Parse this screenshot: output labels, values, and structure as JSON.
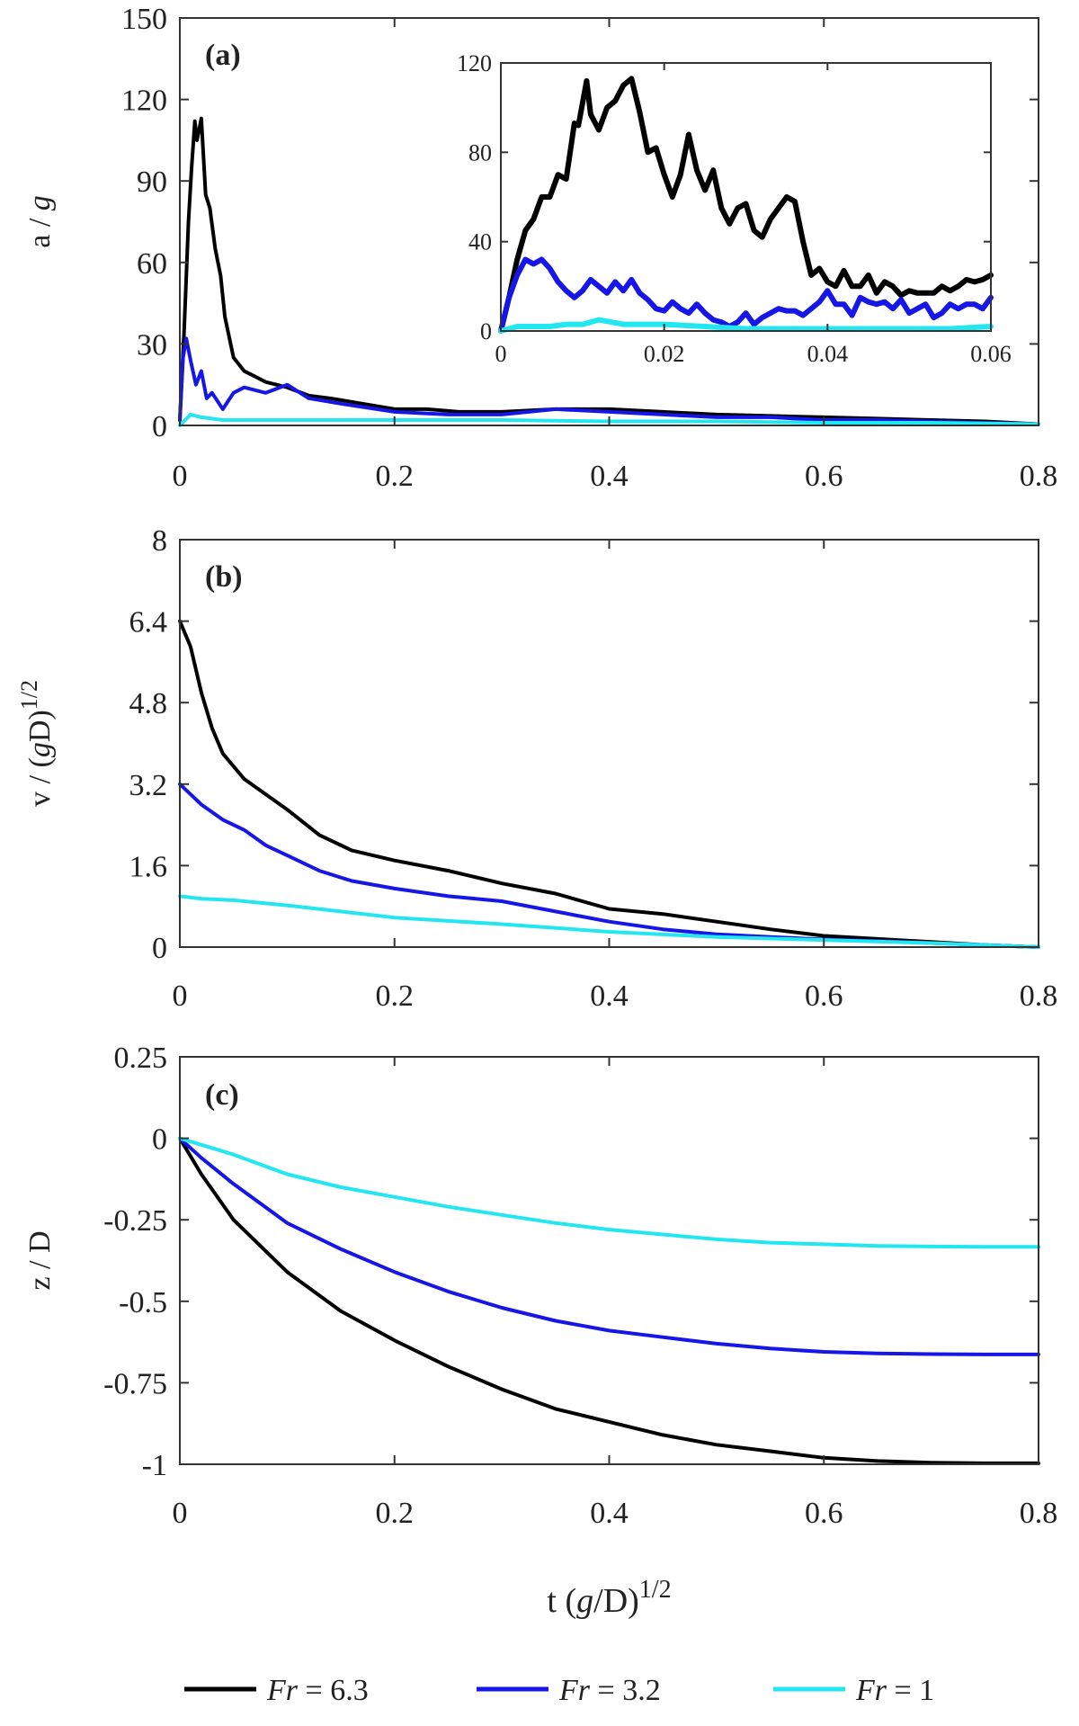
{
  "legend": {
    "items": [
      {
        "name": "Fr",
        "value": "6.3",
        "color": "#000000"
      },
      {
        "name": "Fr",
        "value": "3.2",
        "color": "#1616e6"
      },
      {
        "name": "Fr",
        "value": "1",
        "color": "#22e6f0"
      }
    ],
    "equals": "="
  },
  "chart_data": [
    {
      "type": "line",
      "panel": "(a)",
      "xlabel": "",
      "ylabel": "a / g",
      "xlim": [
        0,
        0.8
      ],
      "ylim": [
        0,
        150
      ],
      "xticks": [
        "0",
        "0.2",
        "0.4",
        "0.6",
        "0.8"
      ],
      "yticks": [
        "0",
        "30",
        "60",
        "90",
        "120",
        "150"
      ],
      "series": [
        {
          "name": "Fr = 6.3",
          "color": "#000000",
          "x": [
            0,
            0.004,
            0.008,
            0.011,
            0.014,
            0.016,
            0.02,
            0.024,
            0.028,
            0.033,
            0.038,
            0.042,
            0.05,
            0.06,
            0.07,
            0.08,
            0.1,
            0.12,
            0.14,
            0.17,
            0.2,
            0.23,
            0.26,
            0.3,
            0.35,
            0.4,
            0.45,
            0.5,
            0.55,
            0.6,
            0.65,
            0.7,
            0.75,
            0.8
          ],
          "y": [
            2,
            35,
            75,
            95,
            112,
            105,
            113,
            85,
            80,
            65,
            55,
            40,
            25,
            20,
            18,
            16,
            14,
            11,
            10,
            8,
            6,
            6,
            5,
            5,
            6,
            6,
            5,
            4,
            3.5,
            3,
            2.5,
            2,
            1.5,
            0.5
          ]
        },
        {
          "name": "Fr = 3.2",
          "color": "#1616e6",
          "x": [
            0,
            0.003,
            0.006,
            0.01,
            0.015,
            0.02,
            0.025,
            0.03,
            0.04,
            0.05,
            0.06,
            0.08,
            0.1,
            0.12,
            0.15,
            0.2,
            0.25,
            0.3,
            0.35,
            0.4,
            0.45,
            0.5,
            0.55,
            0.6,
            0.65,
            0.7,
            0.75,
            0.8
          ],
          "y": [
            2,
            25,
            32,
            24,
            15,
            20,
            10,
            12,
            6,
            12,
            14,
            12,
            15,
            10,
            8,
            5,
            4,
            4,
            6,
            5,
            4,
            3,
            3,
            2,
            2,
            1.5,
            1,
            0.5
          ]
        },
        {
          "name": "Fr = 1",
          "color": "#22e6f0",
          "x": [
            0,
            0.01,
            0.02,
            0.04,
            0.06,
            0.1,
            0.15,
            0.2,
            0.3,
            0.4,
            0.5,
            0.6,
            0.7,
            0.8
          ],
          "y": [
            0,
            4,
            3,
            2,
            2,
            2,
            2,
            2,
            2,
            1.5,
            1.5,
            1,
            1,
            0.5
          ]
        }
      ]
    },
    {
      "type": "line",
      "panel": "inset of (a)",
      "xlim": [
        0,
        0.06
      ],
      "ylim": [
        0,
        120
      ],
      "xticks": [
        "0",
        "0.02",
        "0.04",
        "0.06"
      ],
      "yticks": [
        "0",
        "40",
        "80",
        "120"
      ],
      "series": [
        {
          "name": "Fr = 6.3",
          "color": "#000000",
          "x": [
            0,
            0.001,
            0.002,
            0.003,
            0.004,
            0.005,
            0.006,
            0.007,
            0.008,
            0.009,
            0.0095,
            0.0105,
            0.011,
            0.012,
            0.013,
            0.014,
            0.015,
            0.016,
            0.017,
            0.018,
            0.019,
            0.02,
            0.021,
            0.022,
            0.023,
            0.024,
            0.025,
            0.026,
            0.027,
            0.028,
            0.029,
            0.03,
            0.031,
            0.032,
            0.033,
            0.034,
            0.035,
            0.036,
            0.037,
            0.038,
            0.039,
            0.04,
            0.041,
            0.042,
            0.043,
            0.044,
            0.045,
            0.046,
            0.047,
            0.048,
            0.049,
            0.05,
            0.051,
            0.052,
            0.053,
            0.054,
            0.055,
            0.056,
            0.057,
            0.058,
            0.059,
            0.06
          ],
          "y": [
            0,
            15,
            32,
            45,
            50,
            60,
            60,
            70,
            68,
            93,
            92,
            112,
            97,
            90,
            100,
            103,
            110,
            113,
            98,
            80,
            82,
            70,
            60,
            70,
            88,
            72,
            63,
            72,
            55,
            48,
            55,
            57,
            45,
            42,
            50,
            55,
            60,
            58,
            40,
            25,
            28,
            22,
            20,
            27,
            20,
            20,
            25,
            17,
            22,
            20,
            16,
            18,
            17,
            17,
            17,
            20,
            18,
            20,
            23,
            22,
            23,
            25
          ]
        },
        {
          "name": "Fr = 3.2",
          "color": "#1616e6",
          "x": [
            0,
            0.001,
            0.002,
            0.003,
            0.004,
            0.005,
            0.006,
            0.007,
            0.008,
            0.009,
            0.01,
            0.011,
            0.012,
            0.013,
            0.014,
            0.015,
            0.016,
            0.017,
            0.018,
            0.019,
            0.02,
            0.021,
            0.022,
            0.023,
            0.024,
            0.025,
            0.026,
            0.027,
            0.028,
            0.029,
            0.03,
            0.031,
            0.032,
            0.033,
            0.034,
            0.035,
            0.036,
            0.037,
            0.038,
            0.039,
            0.04,
            0.041,
            0.042,
            0.043,
            0.044,
            0.045,
            0.046,
            0.047,
            0.048,
            0.049,
            0.05,
            0.051,
            0.052,
            0.053,
            0.054,
            0.055,
            0.056,
            0.057,
            0.058,
            0.059,
            0.06
          ],
          "y": [
            0,
            15,
            25,
            32,
            30,
            32,
            28,
            22,
            18,
            15,
            18,
            23,
            20,
            17,
            22,
            18,
            23,
            17,
            14,
            10,
            9,
            13,
            10,
            8,
            12,
            8,
            5,
            4,
            2,
            4,
            8,
            3,
            6,
            8,
            10,
            9,
            9,
            7,
            10,
            13,
            18,
            12,
            12,
            7,
            15,
            13,
            12,
            13,
            10,
            14,
            8,
            10,
            12,
            6,
            8,
            12,
            10,
            12,
            12,
            10,
            15
          ]
        },
        {
          "name": "Fr = 1",
          "color": "#22e6f0",
          "x": [
            0,
            0.002,
            0.004,
            0.006,
            0.008,
            0.01,
            0.012,
            0.015,
            0.02,
            0.025,
            0.03,
            0.035,
            0.04,
            0.045,
            0.05,
            0.055,
            0.06
          ],
          "y": [
            0,
            2,
            2,
            2,
            3,
            3,
            5,
            3,
            3,
            2,
            1,
            1,
            1,
            1,
            1,
            1,
            2
          ]
        }
      ]
    },
    {
      "type": "line",
      "panel": "(b)",
      "xlabel": "",
      "ylabel": "v / (gD)",
      "ylabel_sup": "1/2",
      "xlim": [
        0,
        0.8
      ],
      "ylim": [
        0,
        8
      ],
      "xticks": [
        "0",
        "0.2",
        "0.4",
        "0.6",
        "0.8"
      ],
      "yticks": [
        "0",
        "1.6",
        "3.2",
        "4.8",
        "6.4",
        "8"
      ],
      "series": [
        {
          "name": "Fr = 6.3",
          "color": "#000000",
          "x": [
            0,
            0.01,
            0.02,
            0.03,
            0.04,
            0.06,
            0.08,
            0.1,
            0.13,
            0.16,
            0.2,
            0.25,
            0.3,
            0.35,
            0.4,
            0.45,
            0.5,
            0.55,
            0.6,
            0.65,
            0.7,
            0.75,
            0.8
          ],
          "y": [
            6.4,
            5.9,
            5.0,
            4.3,
            3.8,
            3.3,
            3.0,
            2.7,
            2.2,
            1.9,
            1.7,
            1.5,
            1.25,
            1.05,
            0.75,
            0.65,
            0.5,
            0.35,
            0.22,
            0.16,
            0.1,
            0.04,
            0
          ]
        },
        {
          "name": "Fr = 3.2",
          "color": "#1616e6",
          "x": [
            0,
            0.01,
            0.02,
            0.04,
            0.06,
            0.08,
            0.1,
            0.13,
            0.16,
            0.2,
            0.25,
            0.3,
            0.35,
            0.4,
            0.45,
            0.5,
            0.55,
            0.6,
            0.65,
            0.7,
            0.75,
            0.8
          ],
          "y": [
            3.2,
            3.0,
            2.8,
            2.5,
            2.3,
            2.0,
            1.8,
            1.5,
            1.3,
            1.15,
            1.0,
            0.9,
            0.7,
            0.5,
            0.35,
            0.25,
            0.2,
            0.15,
            0.12,
            0.08,
            0.04,
            0
          ]
        },
        {
          "name": "Fr = 1",
          "color": "#22e6f0",
          "x": [
            0,
            0.02,
            0.05,
            0.1,
            0.15,
            0.2,
            0.3,
            0.4,
            0.5,
            0.6,
            0.7,
            0.8
          ],
          "y": [
            1.0,
            0.95,
            0.92,
            0.82,
            0.7,
            0.58,
            0.45,
            0.3,
            0.2,
            0.14,
            0.08,
            0
          ]
        }
      ]
    },
    {
      "type": "line",
      "panel": "(c)",
      "xlabel": "t (g/D)",
      "xlabel_sup": "1/2",
      "ylabel": "z / D",
      "xlim": [
        0,
        0.8
      ],
      "ylim": [
        -1,
        0.25
      ],
      "xticks": [
        "0",
        "0.2",
        "0.4",
        "0.6",
        "0.8"
      ],
      "yticks": [
        "-1",
        "-0.75",
        "-0.5",
        "-0.25",
        "0",
        "0.25"
      ],
      "series": [
        {
          "name": "Fr = 6.3",
          "color": "#000000",
          "x": [
            0,
            0.02,
            0.05,
            0.1,
            0.15,
            0.2,
            0.25,
            0.3,
            0.35,
            0.4,
            0.45,
            0.5,
            0.55,
            0.6,
            0.65,
            0.7,
            0.75,
            0.8
          ],
          "y": [
            0,
            -0.11,
            -0.25,
            -0.41,
            -0.53,
            -0.62,
            -0.7,
            -0.77,
            -0.83,
            -0.87,
            -0.91,
            -0.94,
            -0.96,
            -0.98,
            -0.99,
            -0.995,
            -0.997,
            -0.997
          ]
        },
        {
          "name": "Fr = 3.2",
          "color": "#1616e6",
          "x": [
            0,
            0.02,
            0.05,
            0.1,
            0.15,
            0.2,
            0.25,
            0.3,
            0.35,
            0.4,
            0.45,
            0.5,
            0.55,
            0.6,
            0.65,
            0.7,
            0.75,
            0.8
          ],
          "y": [
            0,
            -0.06,
            -0.14,
            -0.26,
            -0.34,
            -0.41,
            -0.47,
            -0.52,
            -0.56,
            -0.59,
            -0.61,
            -0.63,
            -0.645,
            -0.655,
            -0.66,
            -0.662,
            -0.663,
            -0.663
          ]
        },
        {
          "name": "Fr = 1",
          "color": "#22e6f0",
          "x": [
            0,
            0.02,
            0.05,
            0.1,
            0.15,
            0.2,
            0.25,
            0.3,
            0.35,
            0.4,
            0.45,
            0.5,
            0.55,
            0.6,
            0.65,
            0.7,
            0.75,
            0.8
          ],
          "y": [
            0,
            -0.02,
            -0.05,
            -0.11,
            -0.15,
            -0.18,
            -0.21,
            -0.235,
            -0.26,
            -0.28,
            -0.295,
            -0.31,
            -0.32,
            -0.325,
            -0.33,
            -0.332,
            -0.333,
            -0.333
          ]
        }
      ]
    }
  ]
}
